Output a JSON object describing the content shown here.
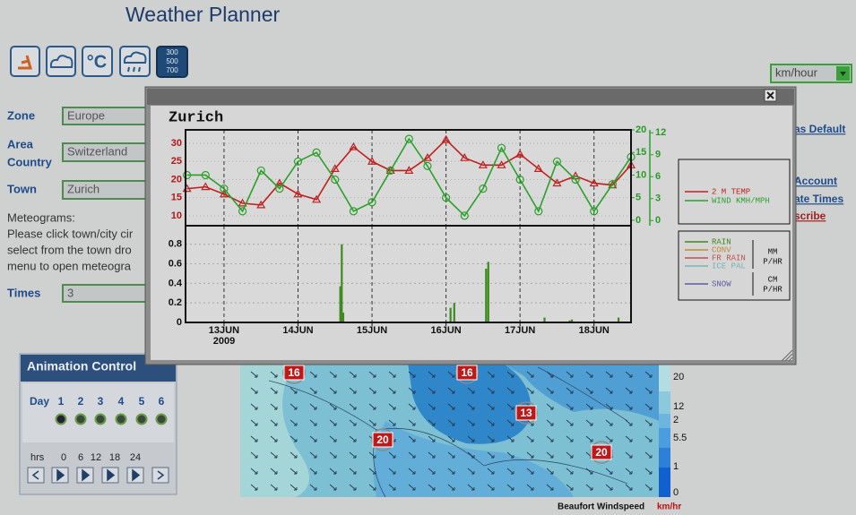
{
  "header": {
    "title": "Weather Planner"
  },
  "toolbar": {
    "levels": [
      "300",
      "500",
      "700"
    ]
  },
  "form": {
    "zone_label": "Zone",
    "zone_value": "Europe",
    "area_label": [
      "Area",
      "Country"
    ],
    "area_value": "Switzerland",
    "town_label": "Town",
    "town_value": "Zurich",
    "note": [
      "Meteograms:",
      "Please click town/city cir",
      "select from the town dro",
      "menu to open meteogra"
    ],
    "times_label": "Times",
    "times_value": "3"
  },
  "units": {
    "selected": "km/hour"
  },
  "links": [
    "as Default",
    "Account",
    "ate Times",
    "scribe"
  ],
  "animation": {
    "title": "Animation Control",
    "day_label": "Day",
    "days": [
      1,
      2,
      3,
      4,
      5,
      6
    ],
    "hours_label": "hrs",
    "hours": [
      0,
      6,
      12,
      18,
      24
    ]
  },
  "map": {
    "markers": [
      16,
      16,
      13,
      20,
      20
    ],
    "scale_labels": [
      20,
      12,
      2,
      5.5,
      1,
      0
    ],
    "caption": "Beaufort Windspeed",
    "unit": "km/hr"
  },
  "chart_data": [
    {
      "type": "line",
      "title": "Zurich",
      "x": [
        -0.5,
        -0.25,
        0,
        0.25,
        0.5,
        0.75,
        1,
        1.25,
        1.5,
        1.75,
        2,
        2.25,
        2.5,
        2.75,
        3,
        3.25,
        3.5,
        3.75,
        4,
        4.25,
        4.5,
        4.75,
        5,
        5.25,
        5.5
      ],
      "xlim": [
        -0.52,
        5.5
      ],
      "xticks": [
        0,
        1,
        2,
        3,
        4,
        5
      ],
      "series": [
        {
          "name": "2 M TEMP",
          "color": "#c02020",
          "values": [
            17.5,
            18,
            16,
            13.5,
            13,
            19,
            16,
            14.5,
            23,
            29,
            25,
            22.5,
            22.5,
            26,
            31,
            26,
            24,
            24,
            27,
            23,
            19,
            21,
            19,
            18.5,
            24
          ]
        },
        {
          "name": "WIND KMH/MPH",
          "color": "#2aa02a",
          "axis": "y2",
          "values": [
            10,
            10,
            7,
            2,
            11,
            7,
            13,
            15,
            9,
            2,
            4,
            11,
            18,
            12,
            5,
            1,
            7,
            16,
            9,
            2,
            13,
            9,
            2,
            8,
            14
          ]
        }
      ],
      "ylim": [
        7.3,
        33.7
      ],
      "yticks": [
        30,
        25,
        20,
        15,
        10
      ],
      "y2lim": [
        -1.2,
        20
      ],
      "y2ticks": [
        20,
        15,
        10,
        5,
        0
      ],
      "y3lim": [
        -0.7,
        12.4
      ],
      "y3ticks": [
        12,
        9,
        6,
        3,
        0
      ]
    },
    {
      "type": "bar",
      "x": [
        1.57,
        1.59,
        1.61,
        3.06,
        3.11,
        3.54,
        3.57,
        4.33,
        4.67,
        4.7,
        5.33
      ],
      "series": [
        {
          "name": "RAIN",
          "color": "#3f8a1f",
          "values": [
            0.37,
            0.8,
            0.1,
            0.15,
            0.2,
            0.55,
            0.62,
            0.05,
            0.02,
            0.03,
            0.05
          ]
        }
      ],
      "legend_extra": [
        {
          "name": "CONV",
          "color": "#c08a3a"
        },
        {
          "name": "FR RAIN",
          "color": "#c05050"
        },
        {
          "name": "ICE PAL",
          "color": "#7ab0b0"
        },
        {
          "name": "SNOW",
          "color": "#5a5aa0"
        }
      ],
      "units_rain": [
        "MM",
        "P/HR"
      ],
      "units_snow": [
        "CM",
        "P/HR"
      ],
      "xlim": [
        -0.52,
        5.5
      ],
      "xticks": [
        {
          "value": 0,
          "label": "13JUN"
        },
        {
          "value": 1,
          "label": "14JUN"
        },
        {
          "value": 2,
          "label": "15JUN"
        },
        {
          "value": 3,
          "label": "16JUN"
        },
        {
          "value": 4,
          "label": "17JUN"
        },
        {
          "value": 5,
          "label": "18JUN"
        }
      ],
      "year": "2009",
      "ylim": [
        0,
        0.99
      ],
      "yticks": [
        0.8,
        0.6,
        0.4,
        0.2,
        0
      ],
      "grid": true
    }
  ]
}
